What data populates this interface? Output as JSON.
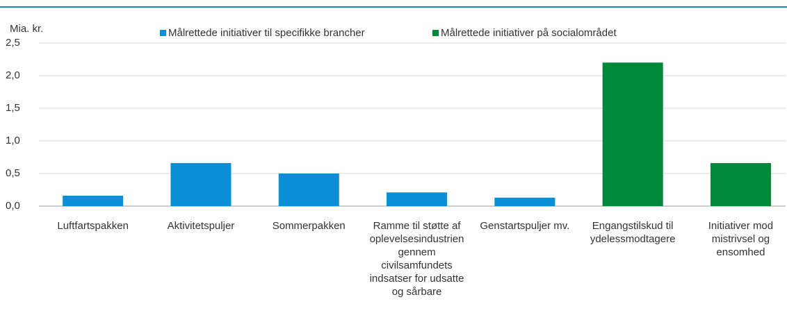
{
  "chart_data": {
    "type": "bar",
    "y_label": "Mia. kr.",
    "categories": [
      "Luftfartspakken",
      "Aktivitetspuljer",
      "Sommerpakken",
      "Ramme til støtte af oplevelsesindustrien gennem civilsamfundets indsatser for udsatte og sårbare",
      "Genstartspuljer mv.",
      "Engangstilskud til ydelessmodtagere",
      "Initiativer mod mistrivsel og ensomhed"
    ],
    "series": [
      {
        "name": "Målrettede initiativer til specifikke brancher",
        "color": "#0a8fd6",
        "values": [
          0.16,
          0.66,
          0.5,
          0.21,
          0.13,
          null,
          null
        ]
      },
      {
        "name": "Målrettede initiativer på socialområdet",
        "color": "#00883a",
        "values": [
          null,
          null,
          null,
          null,
          null,
          2.2,
          0.66
        ]
      }
    ],
    "ylim": [
      0,
      2.5
    ],
    "yticks": [
      {
        "value": 0,
        "label": "0,0"
      },
      {
        "value": 0.5,
        "label": "0,5"
      },
      {
        "value": 1,
        "label": "1,0"
      },
      {
        "value": 1.5,
        "label": "1,5"
      },
      {
        "value": 2,
        "label": "2,0"
      },
      {
        "value": 2.5,
        "label": "2,5"
      }
    ],
    "grid": true
  }
}
